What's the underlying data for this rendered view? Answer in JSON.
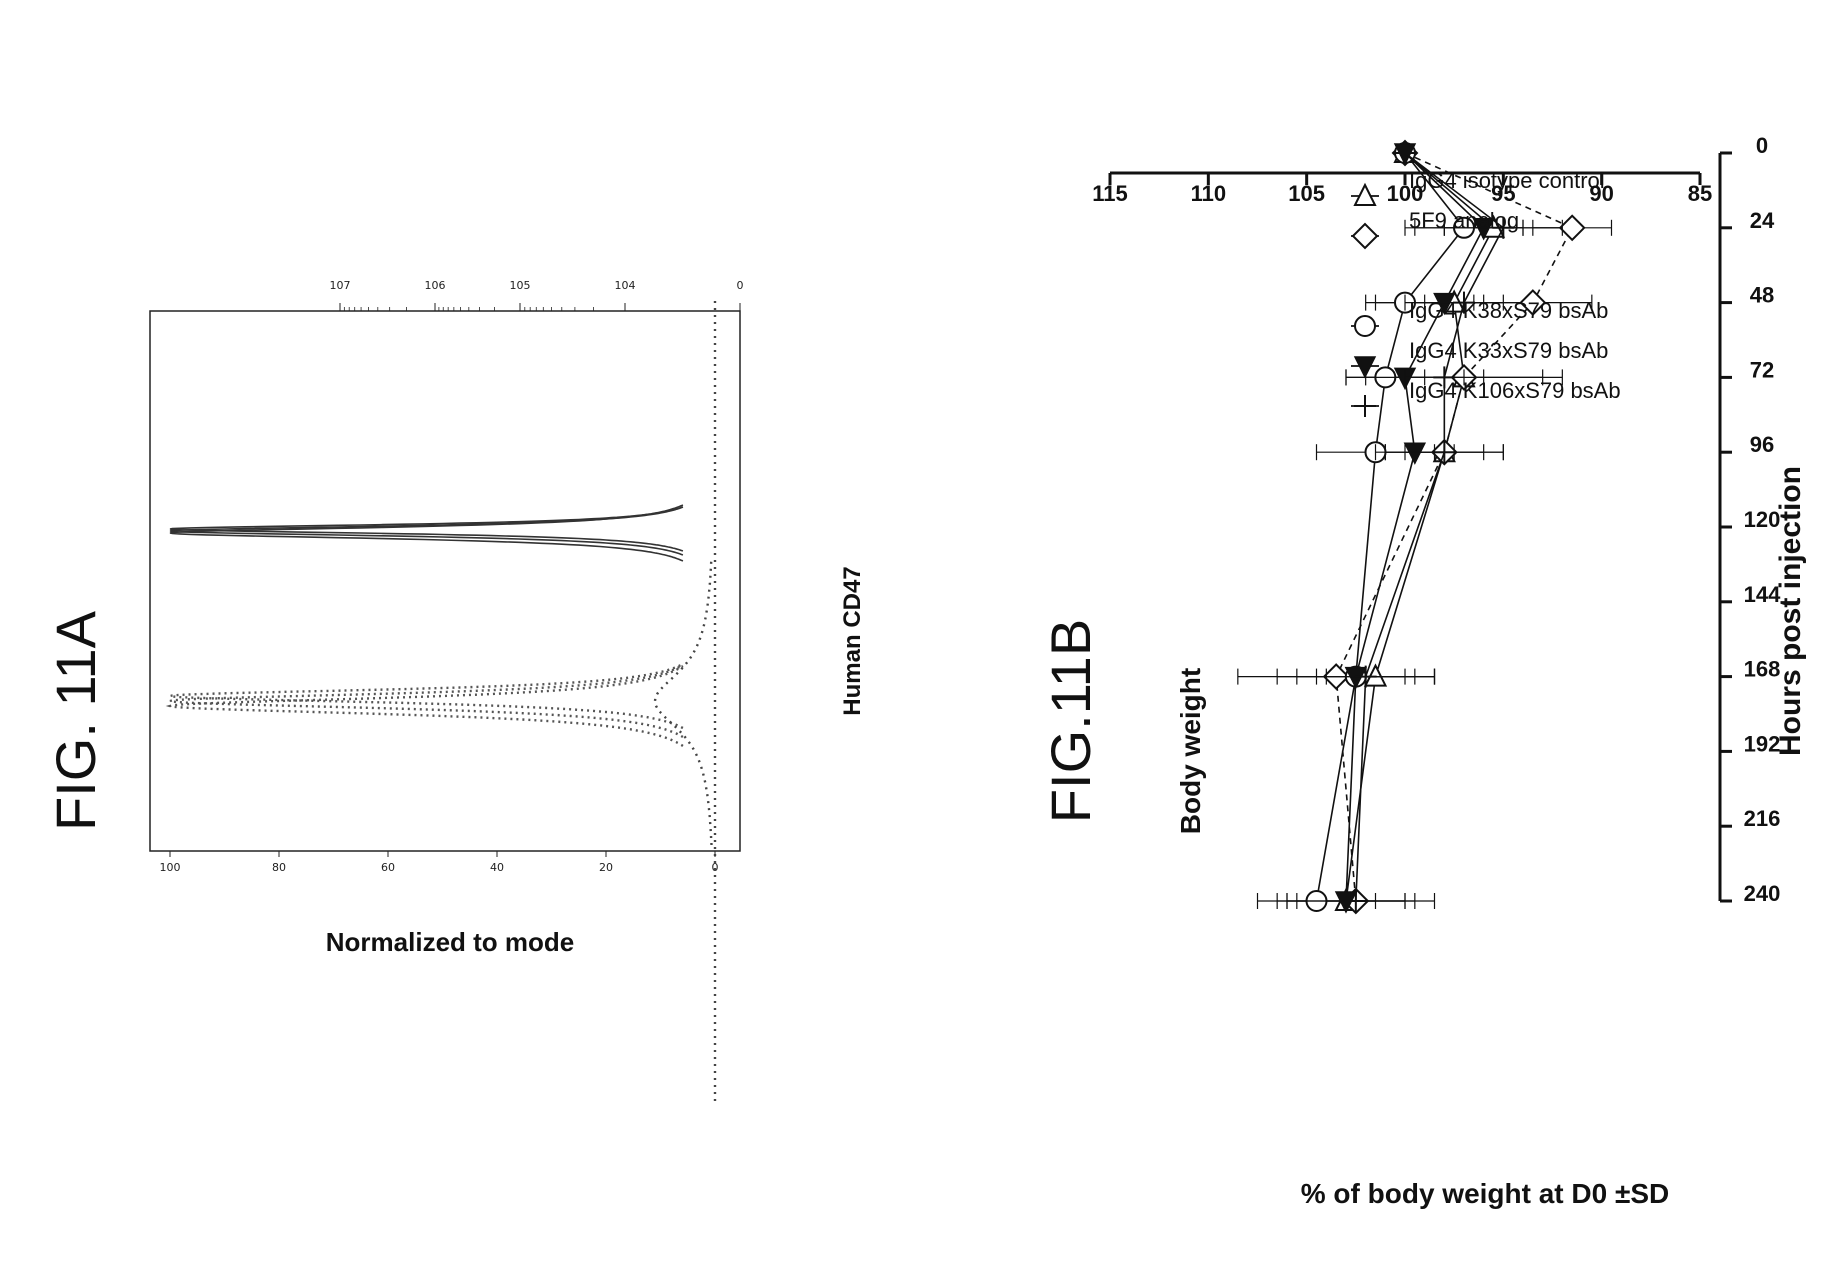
{
  "chart_data": [
    {
      "type": "histogram",
      "figure_label": "FIG. 11A",
      "title": "",
      "xlabel": "Human CD47",
      "ylabel": "Normalized to mode",
      "x_scale": "log",
      "x_tick_labels": [
        "0",
        "10^4",
        "10^5",
        "10^6",
        "10^7"
      ],
      "y_tick_labels": [
        "0",
        "20",
        "40",
        "60",
        "80",
        "100"
      ],
      "ylim": [
        0,
        100
      ],
      "peaks": [
        {
          "style": "solid",
          "center": "0",
          "height": 100
        },
        {
          "style": "dotted",
          "center": "1.5x10^4",
          "height": 100
        }
      ]
    },
    {
      "type": "line",
      "figure_label": "FIG.11B",
      "title": "Body weight",
      "xlabel": "Hours post injection",
      "ylabel": "% of body weight at D0 ±SD",
      "x": [
        0,
        24,
        48,
        72,
        96,
        168,
        240
      ],
      "x_ticks": [
        0,
        24,
        48,
        72,
        96,
        120,
        144,
        168,
        192,
        216,
        240
      ],
      "y_ticks": [
        85,
        90,
        95,
        100,
        105,
        110,
        115
      ],
      "xlim": [
        0,
        240
      ],
      "ylim": [
        85,
        115
      ],
      "series": [
        {
          "name": "IgG4 isotype control",
          "marker": "triangle-down-open",
          "dash": "solid",
          "values": [
            100,
            95.5,
            97.5,
            97,
            98,
            101.5,
            103
          ],
          "sd": [
            0,
            4,
            4,
            4,
            3,
            3,
            3
          ]
        },
        {
          "name": "5F9 analog",
          "marker": "diamond-open",
          "dash": "dashed",
          "values": [
            100,
            91.5,
            93.5,
            97,
            98,
            103.5,
            102.5
          ],
          "sd": [
            0,
            2,
            3,
            5,
            3,
            5,
            4
          ]
        },
        {
          "name": "IgG4 K38xS79 bsAb",
          "marker": "circle-open",
          "dash": "solid",
          "values": [
            100,
            97,
            100,
            101,
            101.5,
            102.5,
            104.5
          ],
          "sd": [
            0,
            3,
            2,
            2,
            3,
            4,
            3
          ]
        },
        {
          "name": "IgG4 K33xS79 bsAb",
          "marker": "triangle-up-filled",
          "dash": "solid",
          "values": [
            100,
            96,
            98,
            100,
            99.5,
            102.5,
            103
          ],
          "sd": [
            0,
            2,
            2,
            3,
            2,
            3,
            3
          ]
        },
        {
          "name": "IgG4 K106xS79 bsAb",
          "marker": "plus",
          "dash": "solid",
          "values": [
            100,
            95,
            97,
            98,
            98,
            102,
            102.5
          ],
          "sd": [
            0,
            3,
            2,
            2,
            2,
            2,
            3
          ]
        }
      ]
    }
  ]
}
